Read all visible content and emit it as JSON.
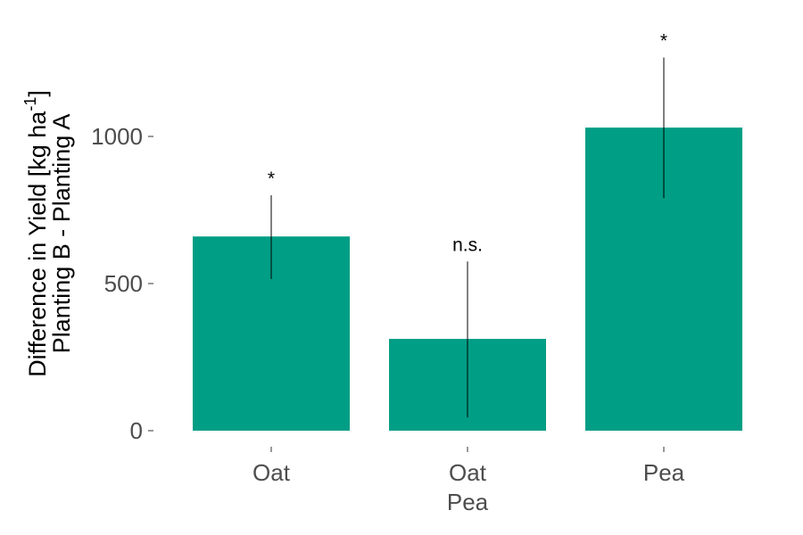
{
  "chart_data": {
    "type": "bar",
    "title": "",
    "categories": [
      [
        "Oat"
      ],
      [
        "Oat",
        "Pea"
      ],
      [
        "Pea"
      ]
    ],
    "values": [
      660,
      312,
      1030
    ],
    "error_bars": [
      {
        "lower": 515,
        "upper": 800
      },
      {
        "lower": 45,
        "upper": 575
      },
      {
        "lower": 790,
        "upper": 1268
      }
    ],
    "annotations": [
      "*",
      "n.s.",
      "*"
    ],
    "ylabel": {
      "line1_main": "Difference in Yield [kg ha",
      "line1_sup": "-1",
      "line1_end": "]",
      "line2": "Planting B - Planting A"
    },
    "yticks": [
      0,
      500,
      1000
    ],
    "ylim": [
      -50,
      1400
    ],
    "grid": false,
    "legend": "none",
    "bar_color": "#009E85",
    "errorbar_color": "#000000"
  }
}
